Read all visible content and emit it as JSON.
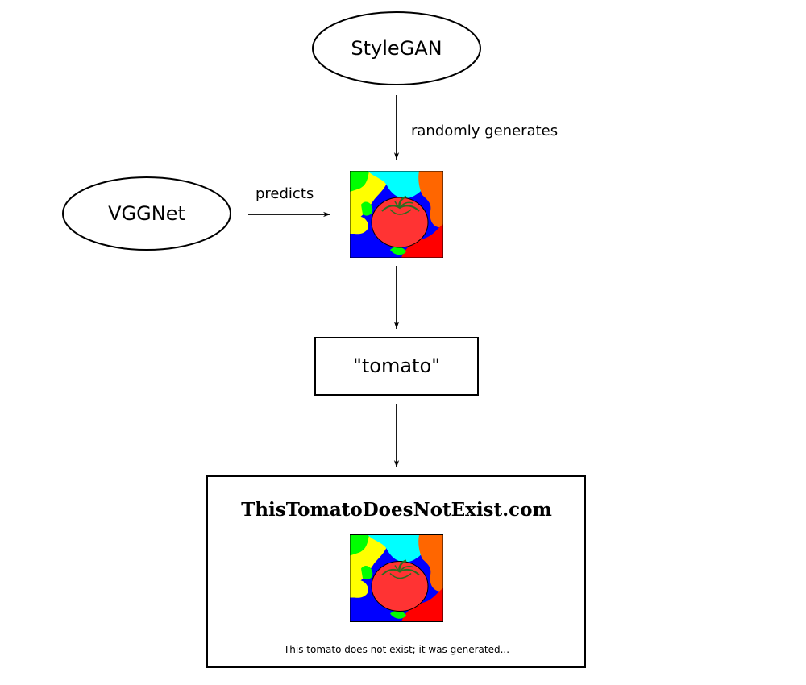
{
  "nodes": {
    "stylegan": {
      "label": "StyleGAN"
    },
    "vggnet": {
      "label": "VGGNet"
    },
    "prediction": {
      "label": "\"tomato\""
    },
    "website": {
      "title": "ThisTomatoDoesNotExist.com",
      "caption": "This tomato does not exist; it was generated..."
    }
  },
  "edges": {
    "stylegan_to_image": {
      "label": "randomly generates"
    },
    "vggnet_to_image": {
      "label": "predicts"
    }
  },
  "image": {
    "colors": {
      "background": "#0000ff",
      "yellow": "#ffff00",
      "cyan": "#00ffff",
      "orange": "#ff6600",
      "red_bg": "#ff0000",
      "green": "#00ff00",
      "tomato": "#ff3333",
      "stem": "#2e6b1f"
    }
  }
}
